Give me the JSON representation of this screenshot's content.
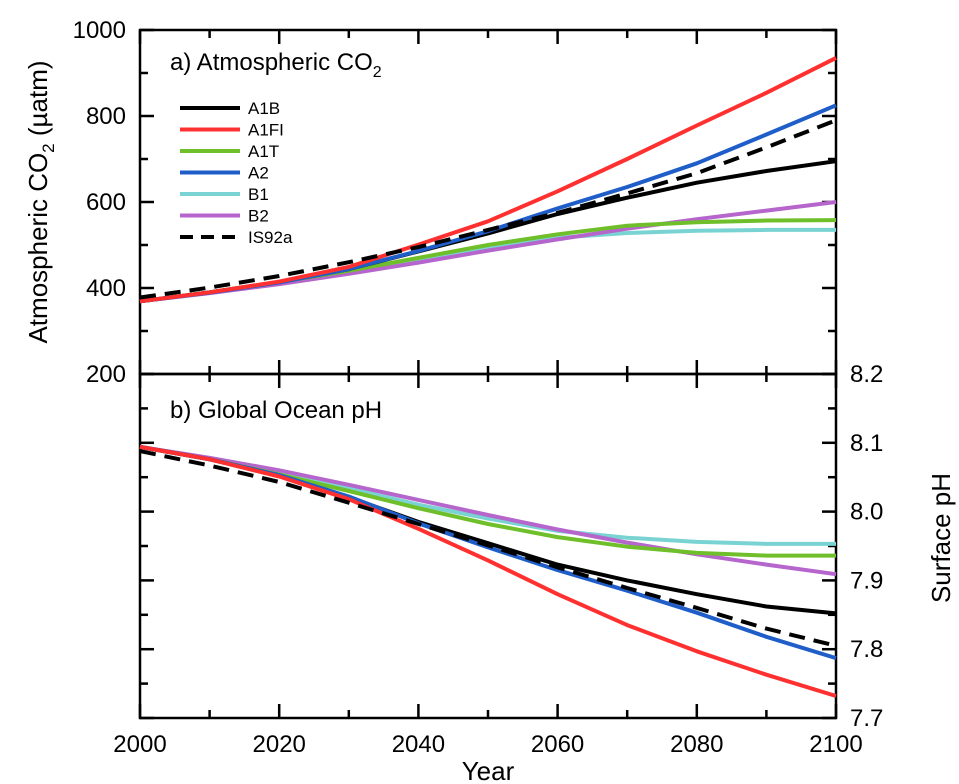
{
  "chart_data": [
    {
      "type": "line",
      "title": "a) Atmospheric CO",
      "title_sub": "2",
      "xlabel": "Year",
      "ylabel": "Atmospheric CO",
      "ylabel_sub": "2",
      "ylabel_unit": " (µatm)",
      "xlim": [
        2000,
        2100
      ],
      "ylim": [
        200,
        1000
      ],
      "y_ticks": [
        200,
        400,
        600,
        800,
        1000
      ],
      "y_minor_step": 100,
      "x_ticks": [
        2000,
        2020,
        2040,
        2060,
        2080,
        2100
      ],
      "x_minor_step": 10,
      "y_axis_side": "left",
      "grid": false,
      "legend_position": "top-left",
      "x": [
        2000,
        2010,
        2020,
        2030,
        2040,
        2050,
        2060,
        2070,
        2080,
        2090,
        2100
      ],
      "series": [
        {
          "name": "A1B",
          "color": "#000000",
          "dash": false,
          "values": [
            369,
            390,
            414,
            444,
            485,
            527,
            572,
            610,
            645,
            672,
            695
          ]
        },
        {
          "name": "A1FI",
          "color": "#ff3030",
          "dash": false,
          "values": [
            369,
            390,
            415,
            449,
            501,
            555,
            625,
            700,
            778,
            854,
            935
          ]
        },
        {
          "name": "A1T",
          "color": "#6fbf2a",
          "dash": false,
          "values": [
            369,
            390,
            414,
            440,
            470,
            500,
            525,
            545,
            553,
            557,
            558
          ]
        },
        {
          "name": "A2",
          "color": "#1f5ec8",
          "dash": false,
          "values": [
            369,
            389,
            413,
            444,
            486,
            532,
            585,
            635,
            690,
            757,
            825
          ]
        },
        {
          "name": "B1",
          "color": "#7ad3d3",
          "dash": false,
          "values": [
            369,
            389,
            413,
            437,
            467,
            495,
            517,
            528,
            533,
            535,
            535
          ]
        },
        {
          "name": "B2",
          "color": "#b565cc",
          "dash": false,
          "values": [
            369,
            388,
            409,
            433,
            459,
            487,
            513,
            538,
            560,
            580,
            600
          ]
        },
        {
          "name": "IS92a",
          "color": "#000000",
          "dash": true,
          "values": [
            378,
            401,
            428,
            460,
            495,
            535,
            575,
            620,
            667,
            727,
            790
          ]
        }
      ]
    },
    {
      "type": "line",
      "title": "b) Global Ocean pH",
      "xlabel": "Year",
      "ylabel": "Surface pH",
      "xlim": [
        2000,
        2100
      ],
      "ylim": [
        7.7,
        8.2
      ],
      "y_ticks": [
        "7.7",
        "7.8",
        "7.9",
        "8.0",
        "8.1",
        "8.2"
      ],
      "y_minor_step": 0.05,
      "x_ticks": [
        2000,
        2020,
        2040,
        2060,
        2080,
        2100
      ],
      "x_minor_step": 10,
      "y_axis_side": "right",
      "grid": false,
      "x": [
        2000,
        2010,
        2020,
        2030,
        2040,
        2050,
        2060,
        2070,
        2080,
        2090,
        2100
      ],
      "series": [
        {
          "name": "A1B",
          "color": "#000000",
          "dash": false,
          "values": [
            8.094,
            8.076,
            8.052,
            8.021,
            7.985,
            7.954,
            7.923,
            7.9,
            7.88,
            7.862,
            7.852
          ]
        },
        {
          "name": "A1FI",
          "color": "#ff3030",
          "dash": false,
          "values": [
            8.094,
            8.076,
            8.051,
            8.018,
            7.975,
            7.929,
            7.88,
            7.835,
            7.797,
            7.763,
            7.732
          ]
        },
        {
          "name": "A1T",
          "color": "#6fbf2a",
          "dash": false,
          "values": [
            8.094,
            8.076,
            8.054,
            8.03,
            8.005,
            7.982,
            7.963,
            7.949,
            7.94,
            7.936,
            7.936
          ]
        },
        {
          "name": "A2",
          "color": "#1f5ec8",
          "dash": false,
          "values": [
            8.094,
            8.076,
            8.053,
            8.022,
            7.983,
            7.948,
            7.915,
            7.885,
            7.853,
            7.818,
            7.787
          ]
        },
        {
          "name": "B1",
          "color": "#7ad3d3",
          "dash": false,
          "values": [
            8.094,
            8.077,
            8.055,
            8.034,
            8.01,
            7.99,
            7.972,
            7.962,
            7.956,
            7.953,
            7.953
          ]
        },
        {
          "name": "B2",
          "color": "#b565cc",
          "dash": false,
          "values": [
            8.094,
            8.078,
            8.06,
            8.039,
            8.017,
            7.995,
            7.974,
            7.955,
            7.938,
            7.923,
            7.909
          ]
        },
        {
          "name": "IS92a",
          "color": "#000000",
          "dash": true,
          "values": [
            8.088,
            8.067,
            8.043,
            8.013,
            7.982,
            7.951,
            7.919,
            7.889,
            7.86,
            7.83,
            7.805
          ]
        }
      ]
    }
  ]
}
